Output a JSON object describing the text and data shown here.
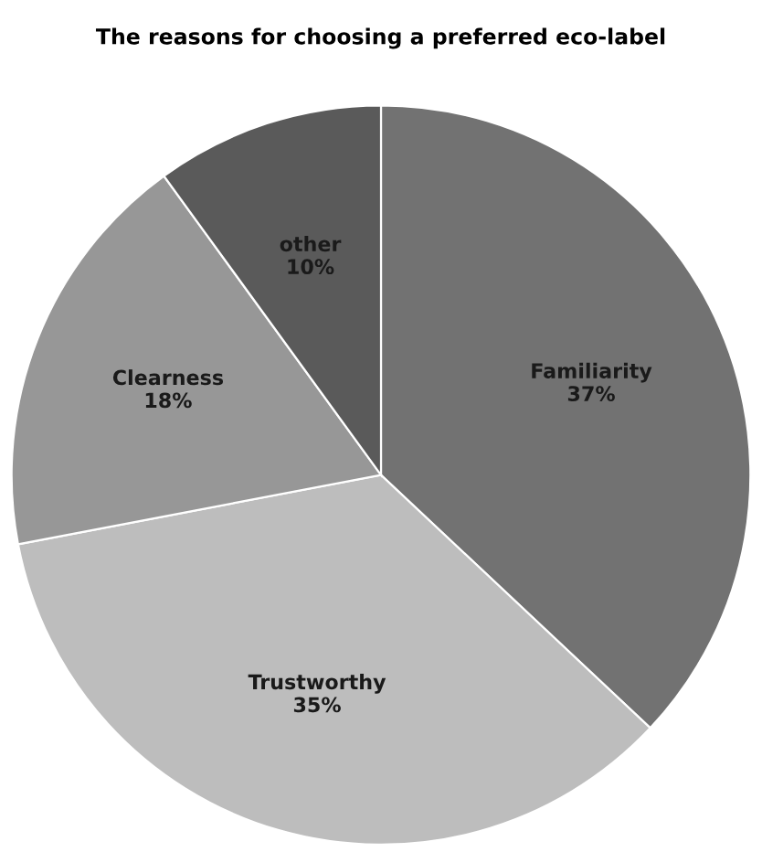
{
  "chart_data": {
    "type": "pie",
    "title": "The reasons for choosing a preferred eco-label",
    "categories": [
      "Familiarity",
      "Trustworthy",
      "Clearness",
      "other"
    ],
    "values": [
      37,
      35,
      18,
      10
    ],
    "colors": [
      "#727272",
      "#bdbdbd",
      "#979797",
      "#5a5a5a"
    ],
    "value_labels": [
      "37%",
      "35%",
      "18%",
      "10%"
    ]
  }
}
